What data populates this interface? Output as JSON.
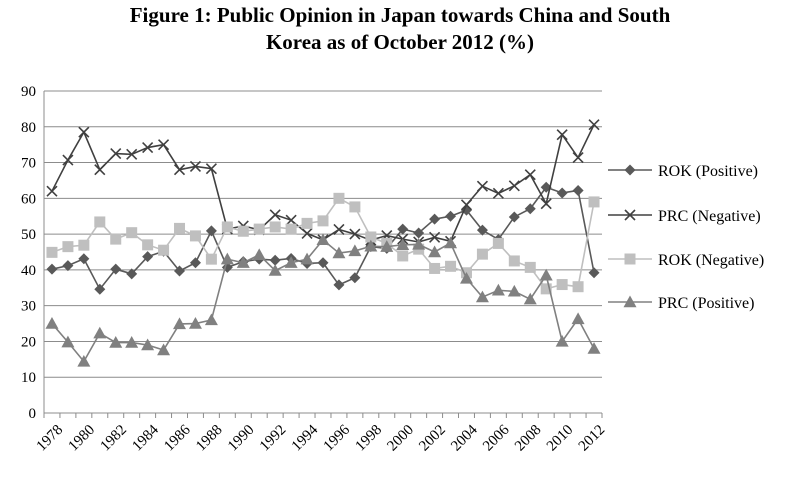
{
  "title_line1": "Figure 1: Public Opinion in Japan towards China and South",
  "title_line2": "Korea as of October 2012 (%)",
  "chart_data": {
    "type": "line",
    "title": "Figure 1: Public Opinion in Japan towards China and South Korea as of October 2012 (%)",
    "xlabel": "",
    "ylabel": "",
    "ylim": [
      0,
      90
    ],
    "yticks": [
      0,
      10,
      20,
      30,
      40,
      50,
      60,
      70,
      80,
      90
    ],
    "xtick_labels": [
      "1978",
      "1980",
      "1982",
      "1984",
      "1986",
      "1988",
      "1990",
      "1992",
      "1994",
      "1996",
      "1998",
      "2000",
      "2002",
      "2004",
      "2006",
      "2008",
      "2010",
      "2012"
    ],
    "grid": "horizontal",
    "legend_position": "right",
    "x": [
      1978,
      1979,
      1980,
      1981,
      1982,
      1983,
      1984,
      1985,
      1986,
      1987,
      1988,
      1989,
      1990,
      1991,
      1992,
      1993,
      1994,
      1995,
      1996,
      1997,
      1998,
      1999,
      2000,
      2001,
      2002,
      2003,
      2004,
      2005,
      2006,
      2007,
      2008,
      2009,
      2010,
      2011,
      2012
    ],
    "series": [
      {
        "name": "ROK (Positive)",
        "marker": "diamond",
        "color": "#595959",
        "values": [
          40.2,
          41.2,
          43.1,
          34.6,
          40.2,
          38.9,
          43.7,
          45.2,
          39.7,
          42.0,
          50.9,
          40.7,
          42.3,
          43.0,
          42.7,
          43.2,
          41.8,
          42.0,
          35.8,
          37.8,
          46.5,
          46.0,
          51.4,
          50.3,
          54.2,
          55.0,
          56.7,
          51.1,
          48.5,
          54.8,
          57.1,
          63.1,
          61.5,
          62.2,
          39.2
        ]
      },
      {
        "name": "PRC (Negative)",
        "marker": "x",
        "color": "#404040",
        "values": [
          62.0,
          70.7,
          78.5,
          68.0,
          72.5,
          72.3,
          74.2,
          75.0,
          68.0,
          68.9,
          68.3,
          51.4,
          52.3,
          51.2,
          55.4,
          53.9,
          50.2,
          48.4,
          51.3,
          50.0,
          48.3,
          49.6,
          48.6,
          47.8,
          49.1,
          48.0,
          58.2,
          63.4,
          61.4,
          63.5,
          66.6,
          58.5,
          77.8,
          71.4,
          80.6
        ]
      },
      {
        "name": "ROK (Negative)",
        "marker": "square",
        "color": "#bfbfbf",
        "values": [
          44.9,
          46.5,
          46.9,
          53.4,
          48.6,
          50.4,
          47.0,
          45.5,
          51.6,
          49.5,
          43.0,
          52.0,
          50.8,
          51.4,
          52.0,
          51.4,
          53.0,
          53.7,
          60.0,
          57.6,
          49.2,
          47.4,
          43.9,
          45.8,
          40.4,
          41.0,
          39.2,
          44.4,
          47.4,
          42.5,
          40.7,
          34.7,
          35.9,
          35.3,
          59.0
        ]
      },
      {
        "name": "PRC (Positive)",
        "marker": "triangle",
        "color": "#808080",
        "values": [
          25.0,
          19.8,
          14.4,
          22.3,
          19.7,
          19.7,
          19.0,
          17.6,
          24.9,
          25.0,
          26.0,
          43.0,
          42.0,
          44.2,
          39.8,
          42.0,
          43.0,
          48.4,
          44.7,
          45.3,
          46.6,
          46.5,
          47.0,
          47.1,
          45.0,
          47.5,
          37.6,
          32.4,
          34.3,
          34.0,
          31.8,
          38.5,
          20.0,
          26.3,
          18.0
        ]
      }
    ]
  }
}
